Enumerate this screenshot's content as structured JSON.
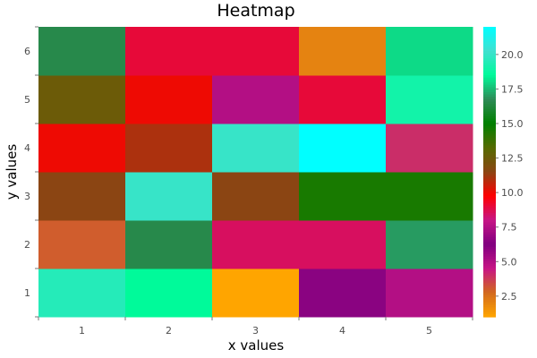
{
  "chart_data": {
    "type": "heatmap",
    "title": "Heatmap",
    "xlabel": "x values",
    "ylabel": "y values",
    "x": [
      1,
      2,
      3,
      4,
      5
    ],
    "y": [
      1,
      2,
      3,
      4,
      5,
      6
    ],
    "values": [
      [
        19.5,
        18.5,
        1.0,
        6.0,
        7.5
      ],
      [
        3.0,
        16.5,
        8.5,
        8.5,
        17.0
      ],
      [
        11.5,
        20.0,
        11.5,
        14.5,
        14.5
      ],
      [
        10.0,
        11.0,
        20.0,
        22.0,
        4.0
      ],
      [
        12.5,
        10.0,
        7.5,
        9.0,
        19.0
      ],
      [
        16.5,
        9.0,
        9.0,
        2.0,
        18.0
      ]
    ],
    "zlim": [
      1.0,
      22.0
    ],
    "colorbar_ticks": [
      "2.5",
      "5.0",
      "7.5",
      "10.0",
      "12.5",
      "15.0",
      "17.5",
      "20.0"
    ],
    "grid": false,
    "colors": {
      "stops": [
        "#ffa500",
        "#d2691e",
        "#c71585",
        "#800080",
        "#c71585",
        "#ff0000",
        "#8b4513",
        "#556b00",
        "#008000",
        "#2e8b57",
        "#00fa9a",
        "#40e0d0",
        "#00ffff"
      ]
    }
  }
}
